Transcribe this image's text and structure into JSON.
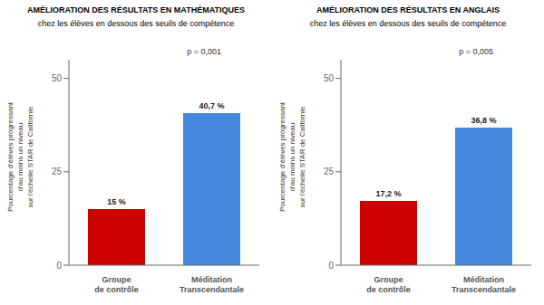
{
  "chart_data": [
    {
      "type": "bar",
      "title": "AMÉLIORATION DES RÉSULTATS EN MATHÉMATIQUES",
      "subtitle": "chez les élèves en dessous des seuils de compétence",
      "annotation": "p = 0,001",
      "ylabel": "Pourcentage d'élèves progressant\nd'au moins un niveau\nsur l'échelle STAR de Californie",
      "categories": [
        "Groupe\nde contrôle",
        "Méditation\nTranscendantale"
      ],
      "values": [
        15.0,
        40.7
      ],
      "value_labels": [
        "15 %",
        "40,7 %"
      ],
      "colors": [
        "#cc0000",
        "#4488dd"
      ],
      "ylim": [
        0,
        55
      ],
      "yticks": [
        0,
        25,
        50
      ],
      "grid": false,
      "data_labels": true
    },
    {
      "type": "bar",
      "title": "AMÉLIORATION DES RÉSULTATS EN ANGLAIS",
      "subtitle": "chez les élèves en dessous des seuils de compétence",
      "annotation": "p = 0,005",
      "ylabel": "Pourcentage d'élèves progressant\nd'au moins un niveau\nsur l'échelle STAR de Californie",
      "categories": [
        "Groupe\nde contrôle",
        "Méditation\nTranscendantale"
      ],
      "values": [
        17.2,
        36.8
      ],
      "value_labels": [
        "17,2 %",
        "36,8 %"
      ],
      "colors": [
        "#cc0000",
        "#4488dd"
      ],
      "ylim": [
        0,
        55
      ],
      "yticks": [
        0,
        25,
        50
      ],
      "grid": false,
      "data_labels": true
    }
  ]
}
